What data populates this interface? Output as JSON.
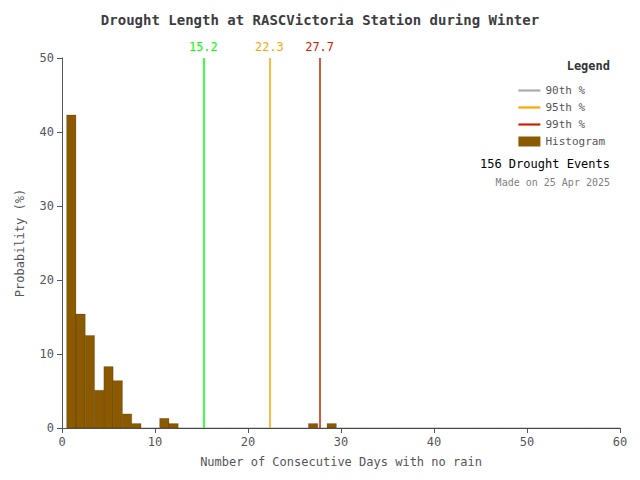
{
  "chart_data": {
    "type": "histogram",
    "title": "Drought Length at RASCVictoria Station during Winter",
    "x_label": "Number of Consecutive Days with no rain",
    "y_label": "Probability (%)",
    "name": "Histogram",
    "color": "#8B5A00",
    "bins": [
      0.5,
      1.5,
      2.5,
      3.5,
      4.5,
      5.5,
      6.5,
      7.5,
      8.5,
      9.5,
      10.5,
      11.5,
      12.5,
      13.5,
      14.5,
      15.5,
      16.5,
      17.5,
      18.5,
      19.5,
      20.5,
      21.5,
      22.5,
      23.5,
      24.5,
      25.5,
      26.5,
      27.5,
      28.5,
      29.5,
      30.5,
      31.5,
      32.5,
      33.5,
      34.5,
      35.5,
      36.5,
      37.5,
      38.5,
      39.5,
      40.5,
      41.5,
      42.5,
      43.5,
      44.5,
      45.5,
      46.5,
      47.5,
      48.5,
      49.5,
      50.5,
      51.5,
      52.5,
      53.5,
      54.5,
      55.5,
      56.5,
      57.5,
      58.5,
      59.5,
      60.5
    ],
    "values": [
      42.3,
      15.4,
      12.5,
      5.1,
      8.3,
      6.4,
      1.9,
      0.6,
      0.0,
      0.0,
      1.3,
      0.6,
      0.0,
      0.0,
      0.0,
      0.0,
      0.0,
      0.0,
      0.0,
      0.0,
      0.0,
      0.0,
      0.0,
      0.0,
      0.0,
      0.0,
      0.6,
      0.0,
      0.6,
      0.0,
      0.0,
      0.0,
      0.0,
      0.0,
      0.0,
      0.0,
      0.0,
      0.0,
      0.0,
      0.0,
      0.0,
      0.0,
      0.0,
      0.0,
      0.0,
      0.0,
      0.0,
      0.0,
      0.0,
      0.0,
      0.0,
      0.0,
      0.0,
      0.0,
      0.0,
      0.0,
      0.0,
      0.0,
      0.0,
      0.0
    ],
    "xlim": [
      0,
      60
    ],
    "ylim": [
      0,
      50
    ],
    "xticks": [
      0,
      10,
      20,
      30,
      40,
      50,
      60
    ],
    "yticks": [
      0,
      10,
      20,
      30,
      40,
      50
    ],
    "grid": false,
    "legend": "upper right",
    "legend_title": "Legend",
    "percentiles": [
      {
        "name": "90th %",
        "value": 15.2,
        "color": "#00FF00",
        "legend_color": "#aaaaaa"
      },
      {
        "name": "95th %",
        "value": 22.3,
        "color": "#FFA500"
      },
      {
        "name": "99th %",
        "value": 27.7,
        "color": "#CC2200"
      }
    ],
    "annotations": [
      "156 Drought Events",
      "Made on 25 Apr 2025"
    ]
  }
}
